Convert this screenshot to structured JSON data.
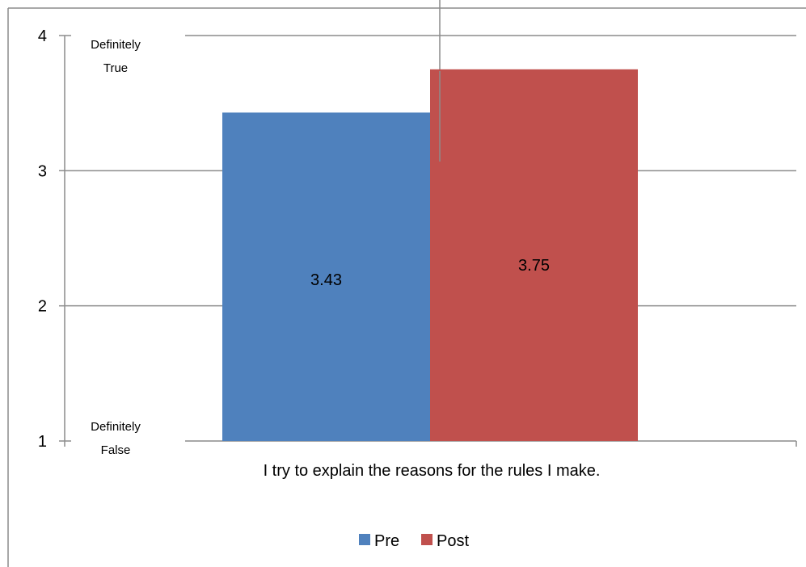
{
  "chart_data": {
    "type": "bar",
    "categories": [
      "I try to explain the reasons for the rules I make."
    ],
    "series": [
      {
        "name": "Pre",
        "values": [
          3.43
        ],
        "color": "#4F81BD",
        "data_label": "3.43"
      },
      {
        "name": "Post",
        "values": [
          3.75
        ],
        "color": "#C0504D",
        "data_label": "3.75"
      }
    ],
    "ylim": [
      1,
      4
    ],
    "yticks": [
      1,
      2,
      3,
      4
    ],
    "ytick_labels": [
      "1",
      "2",
      "3",
      "4"
    ],
    "scale_labels": {
      "top": "Definitely True",
      "bottom": "Definitely False"
    },
    "grid": true,
    "legend_position": "bottom",
    "title": "",
    "xlabel": "",
    "ylabel": ""
  }
}
